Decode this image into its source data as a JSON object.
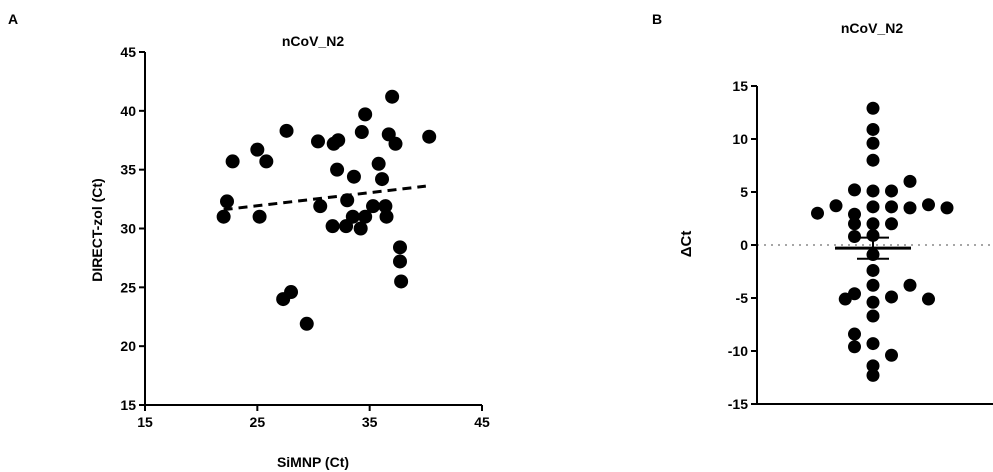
{
  "panels": [
    {
      "letter": "A",
      "title": "nCoV_N2"
    },
    {
      "letter": "B",
      "title": "nCoV_N2"
    }
  ],
  "chart_data": [
    {
      "type": "scatter",
      "title": "nCoV_N2",
      "xlabel": "SiMNP (Ct)",
      "ylabel": "DIRECT-zol (Ct)",
      "xlim": [
        15,
        45
      ],
      "ylim": [
        15,
        45
      ],
      "xticks": [
        "15",
        "25",
        "35",
        "45"
      ],
      "yticks": [
        "15",
        "20",
        "25",
        "30",
        "35",
        "40",
        "45"
      ],
      "points": [
        {
          "x": 22.0,
          "y": 31.0
        },
        {
          "x": 22.3,
          "y": 32.3
        },
        {
          "x": 22.8,
          "y": 35.7
        },
        {
          "x": 25.0,
          "y": 36.7
        },
        {
          "x": 25.2,
          "y": 31.0
        },
        {
          "x": 25.8,
          "y": 35.7
        },
        {
          "x": 27.3,
          "y": 24.0
        },
        {
          "x": 27.6,
          "y": 38.3
        },
        {
          "x": 28.0,
          "y": 24.6
        },
        {
          "x": 29.4,
          "y": 21.9
        },
        {
          "x": 30.4,
          "y": 37.4
        },
        {
          "x": 30.6,
          "y": 31.9
        },
        {
          "x": 31.7,
          "y": 30.2
        },
        {
          "x": 31.8,
          "y": 37.2
        },
        {
          "x": 32.1,
          "y": 35.0
        },
        {
          "x": 32.2,
          "y": 37.5
        },
        {
          "x": 32.9,
          "y": 30.2
        },
        {
          "x": 33.0,
          "y": 32.4
        },
        {
          "x": 33.5,
          "y": 31.0
        },
        {
          "x": 33.6,
          "y": 34.4
        },
        {
          "x": 34.2,
          "y": 30.0
        },
        {
          "x": 34.3,
          "y": 38.2
        },
        {
          "x": 34.6,
          "y": 31.0
        },
        {
          "x": 34.6,
          "y": 39.7
        },
        {
          "x": 35.3,
          "y": 31.9
        },
        {
          "x": 35.8,
          "y": 35.5
        },
        {
          "x": 36.1,
          "y": 34.2
        },
        {
          "x": 36.4,
          "y": 31.9
        },
        {
          "x": 36.5,
          "y": 31.0
        },
        {
          "x": 36.7,
          "y": 38.0
        },
        {
          "x": 37.0,
          "y": 41.2
        },
        {
          "x": 37.3,
          "y": 37.2
        },
        {
          "x": 37.7,
          "y": 28.4
        },
        {
          "x": 37.7,
          "y": 27.2
        },
        {
          "x": 37.8,
          "y": 25.5
        },
        {
          "x": 40.3,
          "y": 37.8
        }
      ],
      "trendline": {
        "x": [
          22.0,
          40.0
        ],
        "y": [
          31.6,
          33.6
        ],
        "style": "dashed"
      }
    },
    {
      "type": "scatter",
      "title": "nCoV_N2",
      "xlabel": "",
      "ylabel": "ΔCt",
      "ylim": [
        -15,
        15
      ],
      "yticks": [
        "-15",
        "-10",
        "-5",
        "0",
        "5",
        "10",
        "15"
      ],
      "reference_line": {
        "y": 0,
        "style": "dotted"
      },
      "mean": -0.3,
      "error_bar": [
        -1.3,
        0.7
      ],
      "points": [
        {
          "x": -3.0,
          "y": 3.0
        },
        {
          "x": -2.0,
          "y": 3.7
        },
        {
          "x": -1.5,
          "y": -5.1
        },
        {
          "x": -1.0,
          "y": 5.2
        },
        {
          "x": -1.0,
          "y": 2.9
        },
        {
          "x": -1.0,
          "y": -4.6
        },
        {
          "x": -1.0,
          "y": -8.4
        },
        {
          "x": -1.0,
          "y": -9.6
        },
        {
          "x": 0.0,
          "y": 12.9
        },
        {
          "x": 0.0,
          "y": 10.9
        },
        {
          "x": 0.0,
          "y": 9.6
        },
        {
          "x": 0.0,
          "y": 8.0
        },
        {
          "x": 0.0,
          "y": 5.1
        },
        {
          "x": 0.0,
          "y": 3.6
        },
        {
          "x": 0.0,
          "y": 2.0
        },
        {
          "x": 0.0,
          "y": 0.9
        },
        {
          "x": 0.0,
          "y": -0.9
        },
        {
          "x": 0.0,
          "y": -2.4
        },
        {
          "x": 0.0,
          "y": -3.8
        },
        {
          "x": 0.0,
          "y": -5.4
        },
        {
          "x": 0.0,
          "y": -6.7
        },
        {
          "x": 0.0,
          "y": -9.3
        },
        {
          "x": 0.0,
          "y": -11.4
        },
        {
          "x": 0.0,
          "y": -12.3
        },
        {
          "x": -1.0,
          "y": 2.0
        },
        {
          "x": -1.0,
          "y": 0.8
        },
        {
          "x": 1.0,
          "y": 5.1
        },
        {
          "x": 1.0,
          "y": 3.6
        },
        {
          "x": 1.0,
          "y": 2.0
        },
        {
          "x": 1.0,
          "y": -4.9
        },
        {
          "x": 1.0,
          "y": -10.4
        },
        {
          "x": 2.0,
          "y": 6.0
        },
        {
          "x": 2.0,
          "y": 3.5
        },
        {
          "x": 2.0,
          "y": -3.8
        },
        {
          "x": 3.0,
          "y": 3.8
        },
        {
          "x": 3.0,
          "y": -5.1
        },
        {
          "x": 4.0,
          "y": 3.5
        }
      ]
    }
  ]
}
